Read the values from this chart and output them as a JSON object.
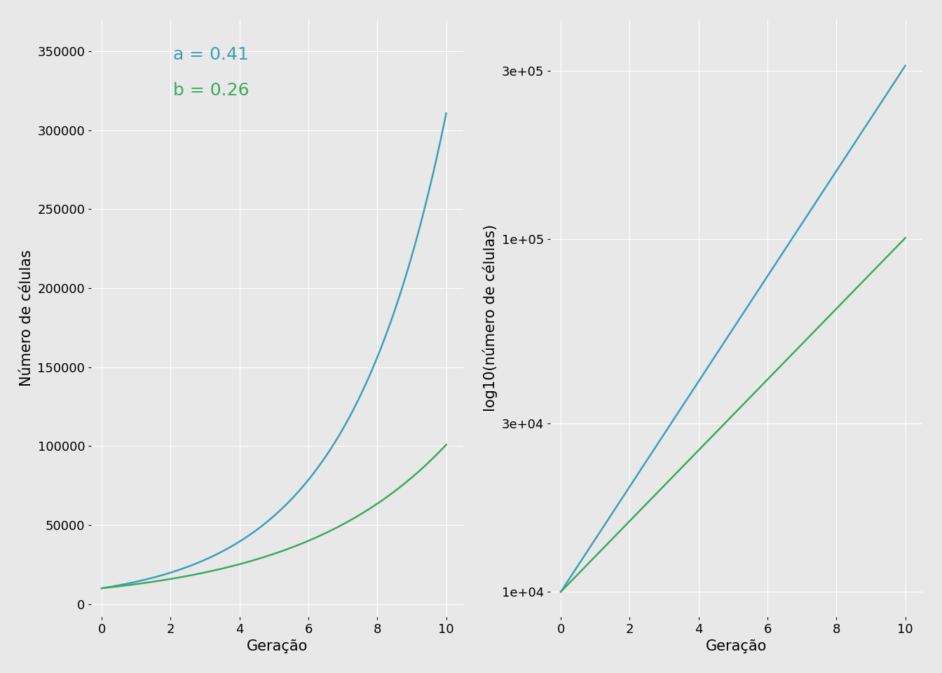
{
  "xlabel": "Geração",
  "ylabel_left": "Número de células",
  "ylabel_right": "log10(número de células)",
  "annotation_a_label": "a = 0.41",
  "annotation_b_label": "b = 0.26",
  "color_a": "#3a9fba",
  "color_b": "#3aaa5c",
  "background_color": "#e8e8e8",
  "fig_background": "#e8e8e8",
  "grid_color": "#ffffff",
  "rate_a": 0.41,
  "rate_b": 0.26,
  "N0": 10000,
  "x_max": 10,
  "x_ticks": [
    0,
    2,
    4,
    6,
    8,
    10
  ],
  "left_yticks": [
    0,
    50000,
    100000,
    150000,
    200000,
    250000,
    300000,
    350000
  ],
  "right_yticks_log": [
    10000,
    30000,
    100000,
    300000
  ],
  "annotation_fontsize": 18,
  "label_fontsize": 15,
  "tick_fontsize": 13
}
